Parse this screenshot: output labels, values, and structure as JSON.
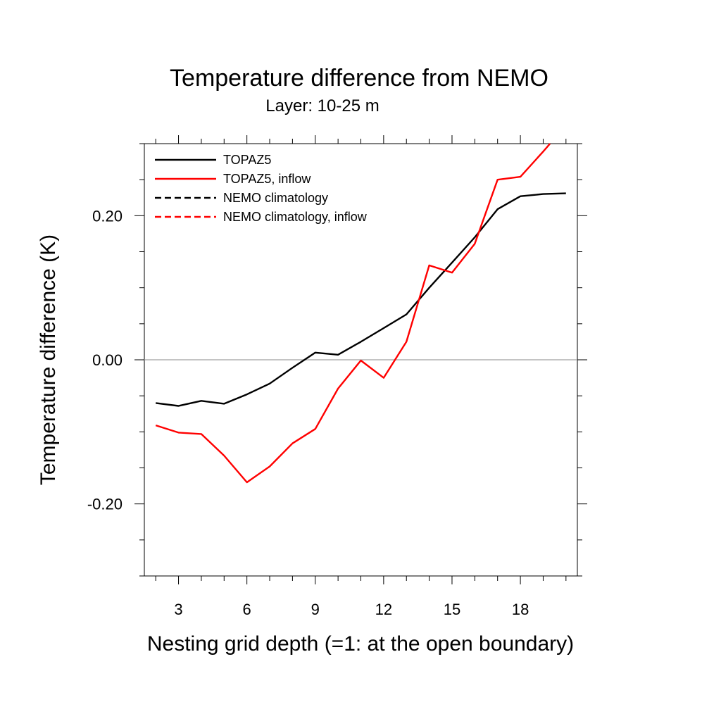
{
  "chart_data": {
    "type": "line",
    "title": "Temperature difference from NEMO",
    "subtitle": "Layer: 10-25 m",
    "xlabel": "Nesting grid depth (=1: at the open boundary)",
    "ylabel": "Temperature difference (K)",
    "xlim": [
      1.5,
      20.5
    ],
    "ylim": [
      -0.3,
      0.3
    ],
    "x_ticks": [
      3,
      6,
      9,
      12,
      15,
      18
    ],
    "x_tick_labels": [
      "3",
      "6",
      "9",
      "12",
      "15",
      "18"
    ],
    "y_ticks": [
      -0.2,
      0.0,
      0.2
    ],
    "y_tick_labels": [
      "-0.20",
      "0.00",
      "0.20"
    ],
    "zero_reference_line": true,
    "legend_position": "top-left",
    "series": [
      {
        "name": "TOPAZ5",
        "color": "#000000",
        "dash": "solid",
        "x": [
          2,
          3,
          4,
          5,
          6,
          7,
          8,
          9,
          10,
          11,
          12,
          13,
          14,
          15,
          16,
          17,
          18,
          19,
          20
        ],
        "values": [
          -0.06,
          -0.064,
          -0.057,
          -0.061,
          -0.048,
          -0.033,
          -0.011,
          0.01,
          0.007,
          0.025,
          0.044,
          0.063,
          0.1,
          0.135,
          0.17,
          0.209,
          0.227,
          0.23,
          0.231
        ]
      },
      {
        "name": "TOPAZ5, inflow",
        "color": "#ff0000",
        "dash": "solid",
        "x": [
          2,
          3,
          4,
          5,
          6,
          7,
          8,
          9,
          10,
          11,
          12,
          13,
          14,
          15,
          16,
          17,
          18,
          19,
          19.3
        ],
        "values": [
          -0.091,
          -0.101,
          -0.103,
          -0.133,
          -0.17,
          -0.148,
          -0.116,
          -0.096,
          -0.04,
          -0.001,
          -0.025,
          0.025,
          0.131,
          0.121,
          0.161,
          0.25,
          0.254,
          0.289,
          0.3
        ]
      },
      {
        "name": "NEMO climatology",
        "color": "#000000",
        "dash": "dashed",
        "x": [],
        "values": []
      },
      {
        "name": "NEMO climatology, inflow",
        "color": "#ff0000",
        "dash": "dashed",
        "x": [],
        "values": []
      }
    ]
  }
}
